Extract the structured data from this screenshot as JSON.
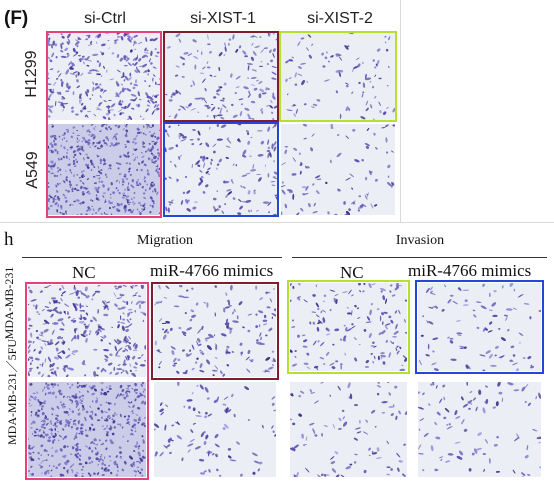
{
  "panel_f": {
    "letter": "(F)",
    "columns": [
      "si-Ctrl",
      "si-XIST-1",
      "si-XIST-2"
    ],
    "rows": [
      "H1299",
      "A549"
    ],
    "frame_colors": {
      "pink": "#e5417a",
      "darkred": "#7a1f2b",
      "lime": "#b5e02f",
      "blue": "#2347d6"
    }
  },
  "panel_h": {
    "letter": "h",
    "groups": [
      "Migration",
      "Invasion"
    ],
    "sub_columns": [
      "NC",
      "miR-4766 mimics",
      "NC",
      "miR-4766 mimics"
    ],
    "rows": [
      "MDA-MB-231",
      "MDA-MB-231／5FU"
    ]
  },
  "stain_color": "#5a4bb0",
  "background_color": "#dcdff0"
}
